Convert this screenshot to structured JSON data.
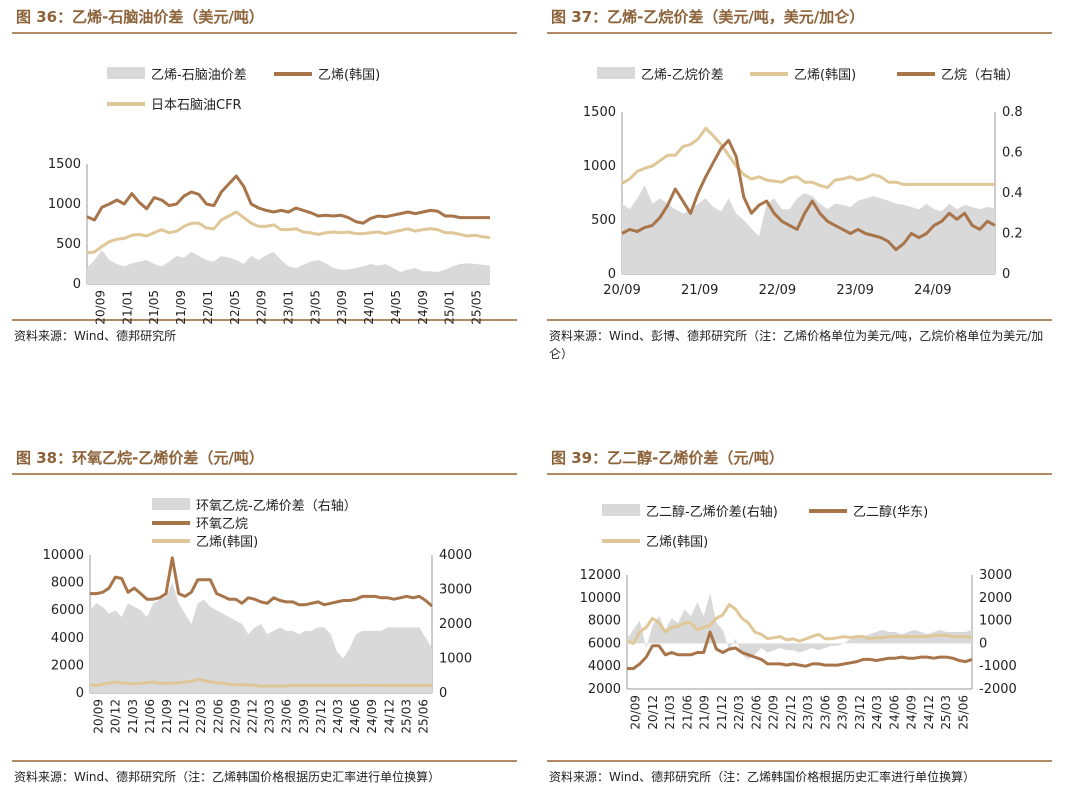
{
  "colors": {
    "spread": "#d9d9d9",
    "dark": "#a8744a",
    "light": "#dfc797",
    "title": "#8c6239",
    "rule": "#b08a63"
  },
  "chart_data": [
    {
      "id": "fig36",
      "type": "line",
      "title": "图 36：乙烯-石脑油价差（美元/吨）",
      "source": "资料来源：Wind、德邦研究所",
      "ylim": [
        0,
        1500
      ],
      "yticks": [
        "0",
        "500",
        "1000",
        "1500"
      ],
      "xticks": [
        "20/09",
        "21/01",
        "21/05",
        "21/09",
        "22/01",
        "22/05",
        "22/09",
        "23/01",
        "23/05",
        "23/09",
        "24/01",
        "24/05",
        "24/09",
        "25/01",
        "25/05"
      ],
      "series": [
        {
          "name": "乙烯-石脑油价差",
          "kind": "area",
          "color": "#d9d9d9",
          "values": [
            200,
            300,
            420,
            300,
            250,
            220,
            260,
            280,
            300,
            250,
            220,
            280,
            350,
            330,
            400,
            350,
            300,
            280,
            350,
            330,
            300,
            250,
            350,
            300,
            360,
            400,
            300,
            220,
            200,
            240,
            280,
            300,
            260,
            200,
            180,
            180,
            200,
            220,
            250,
            230,
            250,
            200,
            150,
            180,
            200,
            160,
            160,
            150,
            180,
            220,
            250,
            260,
            250,
            240,
            230
          ]
        },
        {
          "name": "乙烯(韩国)",
          "kind": "line",
          "color": "#a8744a",
          "values": [
            840,
            800,
            960,
            1000,
            1050,
            1000,
            1130,
            1020,
            940,
            1080,
            1050,
            980,
            1000,
            1100,
            1150,
            1120,
            1000,
            980,
            1150,
            1250,
            1350,
            1220,
            1000,
            950,
            920,
            900,
            920,
            900,
            950,
            920,
            890,
            850,
            860,
            850,
            860,
            830,
            780,
            760,
            820,
            850,
            840,
            860,
            880,
            900,
            880,
            900,
            920,
            910,
            850,
            850,
            830,
            830,
            830,
            830,
            830
          ]
        },
        {
          "name": "日本石脑油CFR",
          "kind": "line",
          "color": "#dfc797",
          "values": [
            390,
            400,
            470,
            530,
            560,
            570,
            610,
            620,
            600,
            640,
            680,
            640,
            660,
            720,
            760,
            760,
            700,
            690,
            800,
            850,
            900,
            830,
            760,
            720,
            720,
            740,
            680,
            680,
            690,
            650,
            640,
            620,
            640,
            650,
            640,
            650,
            630,
            630,
            640,
            650,
            630,
            650,
            670,
            690,
            660,
            680,
            690,
            680,
            640,
            640,
            620,
            600,
            610,
            590,
            580
          ]
        }
      ]
    },
    {
      "id": "fig37",
      "type": "line",
      "title": "图 37：乙烯-乙烷价差（美元/吨，美元/加仑）",
      "source": "资料来源：Wind、彭博、德邦研究所（注：乙烯价格单位为美元/吨，乙烷价格单位为美元/加仑）",
      "ylim": [
        0,
        1500
      ],
      "y2lim": [
        0,
        0.8
      ],
      "yticks": [
        "0",
        "500",
        "1000",
        "1500"
      ],
      "y2ticks": [
        "0",
        "0.2",
        "0.4",
        "0.6",
        "0.8"
      ],
      "xticks": [
        "20/09",
        "21/09",
        "22/09",
        "23/09",
        "24/09"
      ],
      "series": [
        {
          "name": "乙烯-乙烷价差",
          "kind": "area",
          "color": "#d9d9d9",
          "values": [
            650,
            600,
            700,
            820,
            650,
            700,
            650,
            600,
            560,
            600,
            650,
            700,
            620,
            580,
            700,
            560,
            500,
            420,
            350,
            650,
            700,
            600,
            600,
            700,
            750,
            720,
            650,
            600,
            650,
            640,
            620,
            680,
            700,
            720,
            700,
            680,
            650,
            640,
            620,
            600,
            650,
            600,
            580,
            650,
            600,
            640,
            620,
            600,
            620,
            610
          ]
        },
        {
          "name": "乙烯(韩国)",
          "kind": "line",
          "color": "#dfc797",
          "values": [
            840,
            880,
            950,
            980,
            1000,
            1050,
            1100,
            1100,
            1180,
            1200,
            1250,
            1350,
            1280,
            1200,
            1100,
            1000,
            920,
            880,
            900,
            870,
            860,
            850,
            890,
            900,
            850,
            850,
            820,
            800,
            870,
            880,
            900,
            870,
            890,
            920,
            900,
            850,
            850,
            830,
            830,
            830,
            830,
            830,
            830,
            830,
            830,
            830,
            830,
            830,
            830,
            830
          ]
        },
        {
          "name": "乙烷（右轴）",
          "kind": "line",
          "axis": "right",
          "color": "#a8744a",
          "values": [
            0.2,
            0.22,
            0.21,
            0.23,
            0.24,
            0.28,
            0.34,
            0.42,
            0.36,
            0.3,
            0.4,
            0.48,
            0.55,
            0.62,
            0.66,
            0.58,
            0.38,
            0.3,
            0.34,
            0.36,
            0.3,
            0.26,
            0.24,
            0.22,
            0.3,
            0.36,
            0.3,
            0.26,
            0.24,
            0.22,
            0.2,
            0.22,
            0.2,
            0.19,
            0.18,
            0.16,
            0.12,
            0.15,
            0.2,
            0.18,
            0.2,
            0.24,
            0.26,
            0.3,
            0.27,
            0.3,
            0.24,
            0.22,
            0.26,
            0.24
          ]
        }
      ]
    },
    {
      "id": "fig38",
      "type": "line",
      "title": "图 38：环氧乙烷-乙烯价差（元/吨）",
      "source": "资料来源：Wind、德邦研究所（注：乙烯韩国价格根据历史汇率进行单位换算）",
      "ylim": [
        0,
        10000
      ],
      "y2lim": [
        0,
        4000
      ],
      "yticks": [
        "0",
        "2000",
        "4000",
        "6000",
        "8000",
        "10000"
      ],
      "y2ticks": [
        "0",
        "1000",
        "2000",
        "3000",
        "4000"
      ],
      "xticks": [
        "20/09",
        "20/12",
        "21/03",
        "21/06",
        "21/09",
        "21/12",
        "22/03",
        "22/06",
        "22/09",
        "22/12",
        "23/03",
        "23/06",
        "23/09",
        "23/12",
        "24/03",
        "24/06",
        "24/09",
        "24/12",
        "25/03",
        "25/06"
      ],
      "series": [
        {
          "name": "环氧乙烷-乙烯价差（右轴）",
          "kind": "area",
          "axis": "right",
          "color": "#d9d9d9",
          "values": [
            2400,
            2600,
            2500,
            2300,
            2400,
            2200,
            2600,
            2500,
            2400,
            2200,
            2600,
            2700,
            2800,
            3200,
            2600,
            2300,
            2000,
            2600,
            2700,
            2500,
            2400,
            2300,
            2200,
            2100,
            2000,
            1700,
            1900,
            2000,
            1700,
            1800,
            1900,
            1800,
            1800,
            1700,
            1800,
            1800,
            1900,
            1900,
            1700,
            1200,
            1000,
            1300,
            1700,
            1800,
            1800,
            1800,
            1800,
            1900,
            1900,
            1900,
            1900,
            1900,
            1900,
            1600,
            1300
          ]
        },
        {
          "name": "环氧乙烷",
          "kind": "line",
          "color": "#a8744a",
          "values": [
            7200,
            7200,
            7300,
            7600,
            8400,
            8300,
            7300,
            7600,
            7200,
            6800,
            6800,
            6900,
            7200,
            9800,
            7200,
            7000,
            7300,
            8200,
            8200,
            8200,
            7200,
            7000,
            6800,
            6800,
            6500,
            6900,
            6800,
            6600,
            6500,
            6900,
            6700,
            6600,
            6600,
            6400,
            6400,
            6500,
            6600,
            6400,
            6500,
            6600,
            6700,
            6700,
            6800,
            7000,
            7000,
            7000,
            6900,
            6900,
            6800,
            6900,
            7000,
            6900,
            7000,
            6700,
            6300
          ]
        },
        {
          "name": "乙烯(韩国)",
          "kind": "line",
          "color": "#dfc797",
          "values": [
            600,
            550,
            650,
            700,
            800,
            750,
            700,
            650,
            700,
            750,
            800,
            700,
            700,
            700,
            750,
            800,
            850,
            1000,
            900,
            800,
            750,
            700,
            650,
            600,
            600,
            600,
            550,
            500,
            500,
            500,
            500,
            520,
            550,
            550,
            550,
            560,
            550,
            560,
            550,
            550,
            560,
            550,
            550,
            560,
            560,
            550,
            550,
            550,
            550,
            550,
            560,
            550,
            550,
            550,
            550
          ]
        }
      ]
    },
    {
      "id": "fig39",
      "type": "line",
      "title": "图 39：乙二醇-乙烯价差（元/吨）",
      "source": "资料来源：Wind、德邦研究所（注：乙烯韩国价格根据历史汇率进行单位换算）",
      "ylim": [
        2000,
        12000
      ],
      "y2lim": [
        -2000,
        3000
      ],
      "yticks": [
        "2000",
        "4000",
        "6000",
        "8000",
        "10000",
        "12000"
      ],
      "y2ticks": [
        "-2000",
        "-1000",
        "0",
        "1000",
        "2000",
        "3000"
      ],
      "xticks": [
        "20/09",
        "20/12",
        "21/03",
        "21/06",
        "21/09",
        "21/12",
        "22/03",
        "22/06",
        "22/09",
        "22/12",
        "23/03",
        "23/06",
        "23/09",
        "23/12",
        "24/03",
        "24/06",
        "24/09",
        "24/12",
        "25/03",
        "25/06"
      ],
      "series": [
        {
          "name": "乙二醇-乙烯价差(右轴)",
          "kind": "area",
          "axis": "right",
          "color": "#d9d9d9",
          "values": [
            200,
            600,
            1000,
            -200,
            800,
            1200,
            600,
            1100,
            900,
            1500,
            1200,
            1800,
            1200,
            2200,
            900,
            600,
            -300,
            200,
            -500,
            -700,
            -500,
            -200,
            -400,
            -300,
            -200,
            -300,
            -300,
            -400,
            -300,
            -200,
            -300,
            -200,
            -100,
            -100,
            0,
            200,
            300,
            300,
            400,
            500,
            600,
            500,
            500,
            400,
            500,
            600,
            500,
            400,
            500,
            600,
            500,
            500,
            500,
            500,
            600
          ]
        },
        {
          "name": "乙二醇(华东)",
          "kind": "line",
          "color": "#a8744a",
          "values": [
            3800,
            3800,
            4200,
            4800,
            5800,
            5800,
            5000,
            5200,
            5000,
            5000,
            5000,
            5200,
            5200,
            7000,
            5500,
            5200,
            5500,
            5600,
            5200,
            5000,
            4800,
            4600,
            4200,
            4200,
            4200,
            4100,
            4200,
            4100,
            4000,
            4200,
            4200,
            4100,
            4100,
            4100,
            4200,
            4300,
            4400,
            4600,
            4600,
            4500,
            4600,
            4700,
            4700,
            4800,
            4700,
            4700,
            4800,
            4800,
            4700,
            4800,
            4800,
            4700,
            4500,
            4400,
            4600
          ]
        },
        {
          "name": "乙烯(韩国)",
          "kind": "line",
          "color": "#dfc797",
          "values": [
            6200,
            6000,
            7000,
            7400,
            8200,
            7800,
            7000,
            7400,
            7500,
            7800,
            7800,
            7200,
            7400,
            7600,
            8200,
            8500,
            9400,
            9000,
            8200,
            7800,
            7000,
            6800,
            6400,
            6500,
            6600,
            6300,
            6400,
            6200,
            6400,
            6600,
            6800,
            6400,
            6400,
            6500,
            6600,
            6500,
            6600,
            6600,
            6400,
            6500,
            6500,
            6600,
            6600,
            6600,
            6600,
            6600,
            6600,
            6600,
            6700,
            6700,
            6700,
            6600,
            6600,
            6600,
            6500
          ]
        }
      ]
    }
  ]
}
